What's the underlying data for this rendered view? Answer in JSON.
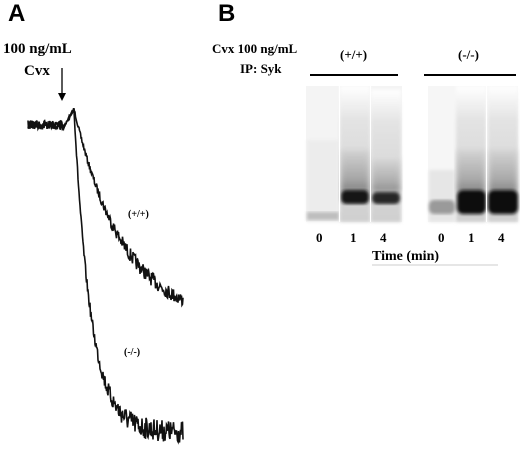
{
  "panel_a": {
    "letter": "A",
    "dose_line1": "100 ng/mL",
    "dose_line2": "Cvx",
    "trace_wt_label": "(+/+)",
    "trace_ko_label": "(-/-)"
  },
  "panel_b": {
    "letter": "B",
    "header_line1": "Cvx 100 ng/mL",
    "header_line2": "IP: Syk",
    "group_wt": "(+/+)",
    "group_ko": "(-/-)",
    "lane_labels_wt": [
      "0",
      "1",
      "4"
    ],
    "lane_labels_ko": [
      "0",
      "1",
      "4"
    ],
    "x_axis_label": "Time (min)"
  },
  "colors": {
    "trace": "#111111",
    "blot_background": "#d6d6d6",
    "band": "#1a1a1a"
  }
}
